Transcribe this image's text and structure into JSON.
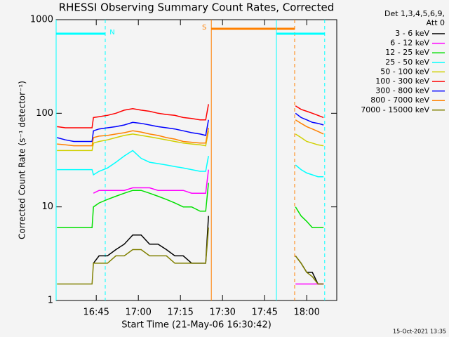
{
  "chart_data": {
    "type": "line",
    "title": "RHESSI Observing Summary Count Rates, Corrected",
    "xlabel": "Start Time (21-May-06 16:30:42)",
    "ylabel": "Corrected Count Rate (s⁻¹ detector⁻¹)",
    "log_y": true,
    "legend_title": [
      "Det 1,3,4,5,6,9,",
      "Att 0"
    ],
    "legend_position": "right",
    "footer": "15-Oct-2021 13:35",
    "xlim": [
      0.7,
      100.7
    ],
    "ylim": [
      1,
      1000
    ],
    "xticks": [
      {
        "value": 15,
        "label": "16:45"
      },
      {
        "value": 30,
        "label": "17:00"
      },
      {
        "value": 45,
        "label": "17:15"
      },
      {
        "value": 60,
        "label": "17:30"
      },
      {
        "value": 75,
        "label": "17:45"
      },
      {
        "value": 90,
        "label": "18:00"
      }
    ],
    "yticks": [
      1,
      10,
      100,
      1000
    ],
    "annotations": [
      {
        "label": "N",
        "color": "#00ffff",
        "bar": [
          0.7,
          18.2
        ]
      },
      {
        "label": "S",
        "color": "#ff8000",
        "bar": [
          56,
          85.7
        ]
      },
      {
        "color": "#00ffff",
        "bar": [
          79.2,
          96.4
        ]
      }
    ],
    "x": [
      1,
      4,
      7,
      10,
      13.5,
      14,
      16,
      19,
      22,
      25,
      28,
      31,
      34,
      37,
      40,
      43,
      46,
      49,
      52,
      54,
      55,
      70,
      86,
      88,
      90,
      92,
      94,
      96
    ],
    "series": [
      {
        "name": "3 - 6 keV",
        "color": "#000000",
        "values": [
          null,
          null,
          null,
          null,
          null,
          2.5,
          3,
          3,
          3.5,
          4,
          5,
          5,
          4,
          4,
          3.5,
          3,
          3,
          2.5,
          2.5,
          2.5,
          8,
          null,
          3,
          2.5,
          2,
          2,
          1.5,
          1.5
        ]
      },
      {
        "name": "6 - 12 keV",
        "color": "#ff00ff",
        "values": [
          null,
          null,
          null,
          null,
          null,
          14,
          15,
          15,
          15,
          15,
          16,
          16,
          16,
          15,
          15,
          15,
          15,
          14,
          14,
          14,
          25,
          null,
          1.5,
          1.5,
          1.5,
          1.5,
          1.5,
          1.5
        ]
      },
      {
        "name": "12 - 25 keV",
        "color": "#00e000",
        "values": [
          6,
          6,
          6,
          6,
          6,
          10,
          11,
          12,
          13,
          14,
          15,
          15,
          14,
          13,
          12,
          11,
          10,
          10,
          9,
          9,
          18,
          null,
          10,
          8,
          7,
          6,
          6,
          6
        ]
      },
      {
        "name": "25 - 50 keV",
        "color": "#00ffff",
        "values": [
          25,
          25,
          25,
          25,
          25,
          22,
          24,
          26,
          30,
          35,
          40,
          33,
          30,
          29,
          28,
          27,
          26,
          25,
          24,
          24,
          35,
          null,
          28,
          25,
          23,
          22,
          21,
          21
        ]
      },
      {
        "name": "50 - 100 keV",
        "color": "#d0d000",
        "values": [
          40,
          40,
          40,
          40,
          40,
          48,
          50,
          52,
          55,
          58,
          60,
          58,
          56,
          54,
          52,
          50,
          48,
          47,
          46,
          45,
          65,
          null,
          60,
          55,
          50,
          48,
          46,
          45
        ]
      },
      {
        "name": "100 - 300 keV",
        "color": "#ff0000",
        "values": [
          72,
          70,
          70,
          70,
          70,
          90,
          92,
          95,
          100,
          108,
          112,
          108,
          105,
          100,
          97,
          95,
          90,
          88,
          85,
          85,
          125,
          null,
          120,
          110,
          105,
          100,
          95,
          90
        ]
      },
      {
        "name": "300 - 800 keV",
        "color": "#0000ff",
        "values": [
          55,
          52,
          50,
          50,
          50,
          65,
          68,
          70,
          72,
          75,
          80,
          78,
          75,
          72,
          70,
          68,
          65,
          62,
          60,
          58,
          85,
          null,
          100,
          90,
          85,
          80,
          78,
          75
        ]
      },
      {
        "name": "800 - 7000 keV",
        "color": "#ff8000",
        "values": [
          47,
          46,
          45,
          45,
          45,
          55,
          57,
          58,
          60,
          62,
          65,
          63,
          60,
          58,
          55,
          53,
          50,
          49,
          48,
          48,
          70,
          null,
          85,
          78,
          72,
          68,
          64,
          60
        ]
      },
      {
        "name": "7000 - 15000 keV",
        "color": "#808000",
        "values": [
          1.5,
          1.5,
          1.5,
          1.5,
          1.5,
          2.5,
          2.5,
          2.5,
          3,
          3,
          3.5,
          3.5,
          3,
          3,
          3,
          2.5,
          2.5,
          2.5,
          2.5,
          2.5,
          6,
          null,
          3,
          2.5,
          2,
          1.8,
          1.5,
          1.5
        ]
      }
    ]
  }
}
